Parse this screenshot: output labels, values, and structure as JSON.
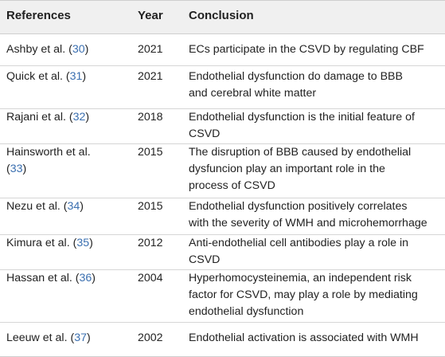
{
  "table": {
    "headers": {
      "references": "References",
      "year": "Year",
      "conclusion": "Conclusion"
    },
    "rows": [
      {
        "author": "Ashby et al. (",
        "ref_num": "30",
        "close": ")",
        "year": "2021",
        "conclusion_lines": [
          "ECs participate in the CSVD by regulating CBF"
        ]
      },
      {
        "author": "Quick et al. (",
        "ref_num": "31",
        "close": ")",
        "year": "2021",
        "conclusion_lines": [
          "Endothelial dysfunction do damage to BBB",
          "and cerebral white matter"
        ]
      },
      {
        "author": "Rajani et al. (",
        "ref_num": "32",
        "close": ")",
        "year": "2018",
        "conclusion_lines": [
          "Endothelial dysfunction is the initial feature of",
          "CSVD"
        ]
      },
      {
        "author_lines": [
          "Hainsworth et al.",
          "("
        ],
        "ref_num": "33",
        "close": ")",
        "year": "2015",
        "conclusion_lines": [
          "The disruption of BBB caused by endothelial",
          "dysfuncion play an important role in the",
          "process of CSVD"
        ]
      },
      {
        "author": "Nezu et al. (",
        "ref_num": "34",
        "close": ")",
        "year": "2015",
        "conclusion_lines": [
          "Endothelial dysfunction positively correlates",
          "with the severity of WMH and microhemorrhage"
        ]
      },
      {
        "author": "Kimura et al. (",
        "ref_num": "35",
        "close": ")",
        "year": "2012",
        "conclusion_lines": [
          "Anti-endothelial cell antibodies play a role in",
          "CSVD"
        ]
      },
      {
        "author": "Hassan et al. (",
        "ref_num": "36",
        "close": ")",
        "year": "2004",
        "conclusion_lines": [
          "Hyperhomocysteinemia, an independent risk",
          "factor for CSVD, may play a role by mediating",
          "endothelial dysfunction"
        ]
      },
      {
        "author": "Leeuw et al. (",
        "ref_num": "37",
        "close": ")",
        "year": "2002",
        "conclusion_lines": [
          "Endothelial activation is associated with WMH"
        ]
      }
    ]
  }
}
